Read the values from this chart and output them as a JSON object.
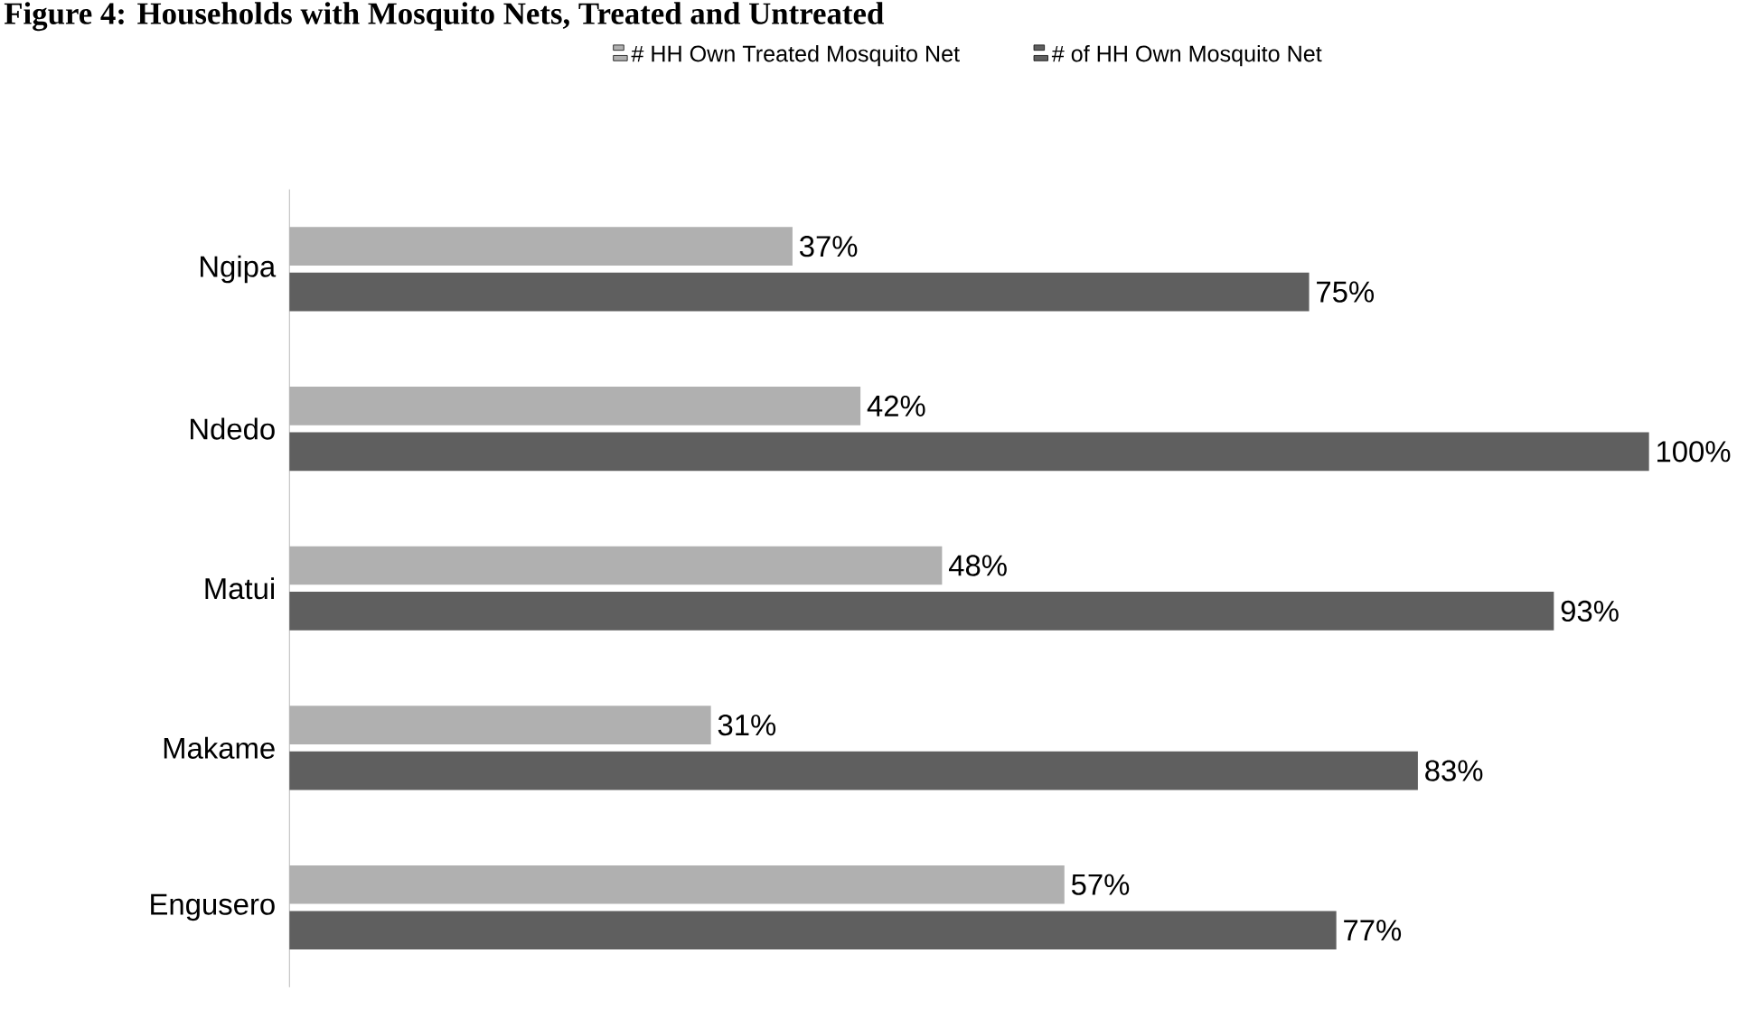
{
  "chart_data": {
    "type": "bar",
    "orientation": "horizontal",
    "title": "Figure 4: Households with Mosquito Nets, Treated and Untreated",
    "categories": [
      "Ngipa",
      "Ndedo",
      "Matui",
      "Makame",
      "Engusero"
    ],
    "series": [
      {
        "name": "# HH Own Treated Mosquito Net",
        "color": "#b0b0b0",
        "values": [
          37,
          42,
          48,
          31,
          57
        ],
        "value_labels": [
          "37%",
          "42%",
          "48%",
          "31%",
          "57%"
        ]
      },
      {
        "name": "# of HH Own Mosquito Net",
        "color": "#5f5f5f",
        "values": [
          75,
          100,
          93,
          83,
          77
        ],
        "value_labels": [
          "75%",
          "100%",
          "93%",
          "83%",
          "77%"
        ]
      }
    ],
    "legend": "top"
  }
}
